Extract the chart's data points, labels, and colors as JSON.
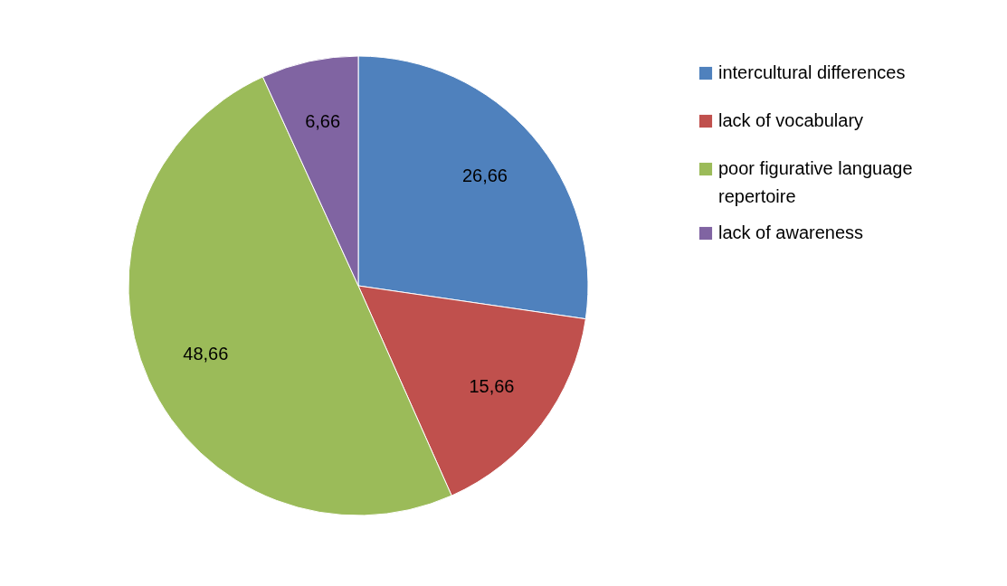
{
  "chart_data": {
    "type": "pie",
    "categories": [
      "intercultural differences",
      "lack of vocabulary",
      "poor figurative language repertoire",
      "lack of awareness"
    ],
    "values": [
      26.66,
      15.66,
      48.66,
      6.66
    ],
    "value_labels": [
      "26,66",
      "15,66",
      "48,66",
      "6,66"
    ],
    "colors": [
      "#4f81bd",
      "#c0504d",
      "#9bbb59",
      "#8064a2"
    ],
    "legend": "right"
  }
}
